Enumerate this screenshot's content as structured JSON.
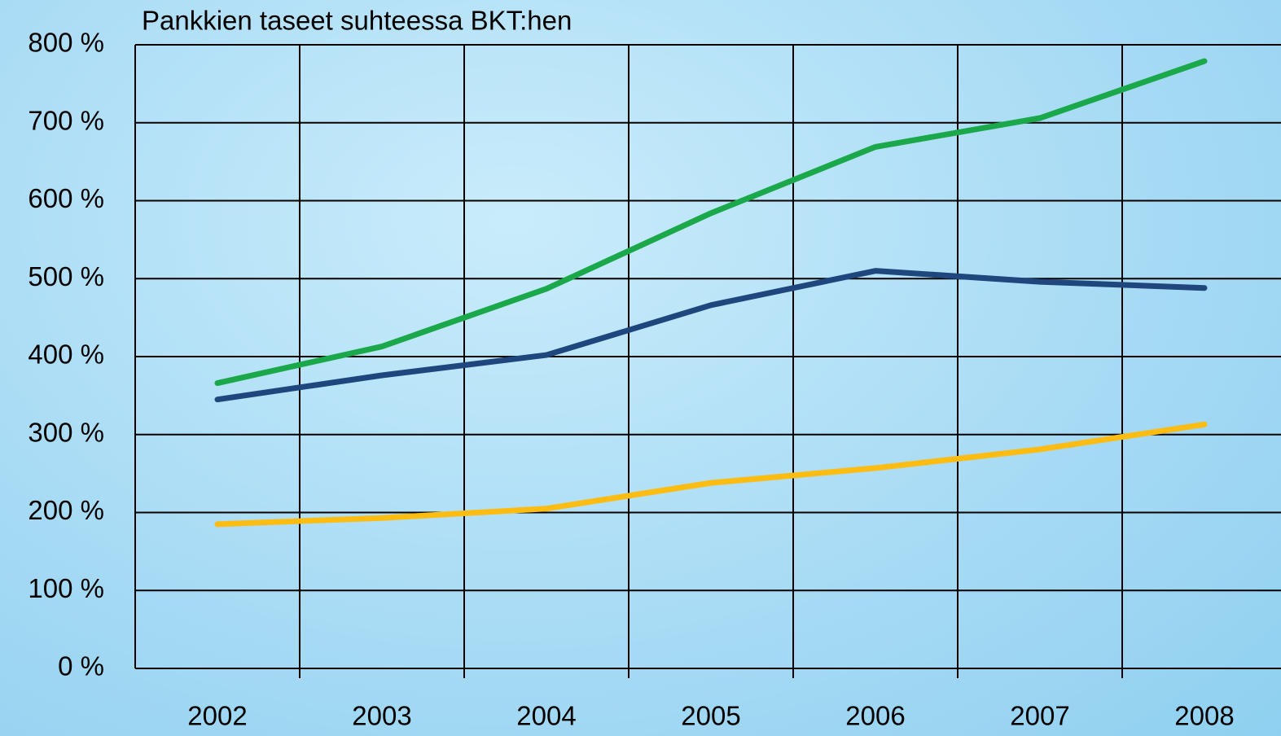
{
  "chart_data": {
    "type": "line",
    "title": "Pankkien taseet suhteessa BKT:hen",
    "categories": [
      "2002",
      "2003",
      "2004",
      "2005",
      "2006",
      "2007",
      "2008"
    ],
    "series": [
      {
        "color": "#1aa84b",
        "values": [
          366,
          413,
          487,
          584,
          669,
          706,
          779
        ]
      },
      {
        "color": "#1f477e",
        "values": [
          345,
          376,
          402,
          466,
          510,
          496,
          488
        ]
      },
      {
        "color": "#fdbc11",
        "values": [
          185,
          193,
          205,
          238,
          257,
          281,
          313
        ]
      }
    ],
    "ylim": [
      0,
      800
    ],
    "yticks": [
      {
        "value": 0,
        "label": "0 %"
      },
      {
        "value": 100,
        "label": "100 %"
      },
      {
        "value": 200,
        "label": "200 %"
      },
      {
        "value": 300,
        "label": "300 %"
      },
      {
        "value": 400,
        "label": "400 %"
      },
      {
        "value": 500,
        "label": "500 %"
      },
      {
        "value": 600,
        "label": "600 %"
      },
      {
        "value": 700,
        "label": "700 %"
      },
      {
        "value": 800,
        "label": "800 %"
      }
    ],
    "grid": true
  }
}
